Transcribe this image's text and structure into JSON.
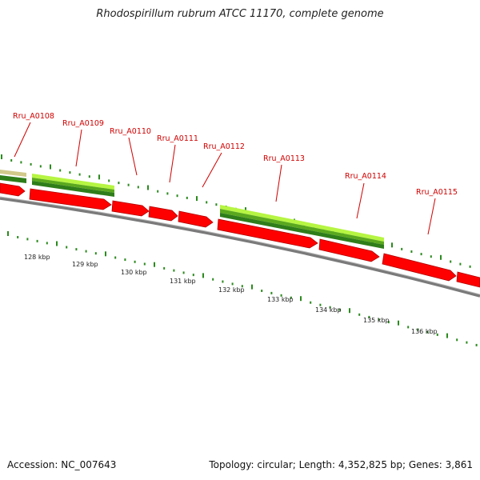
{
  "title": "Rhodospirillum rubrum ATCC 11170, complete genome",
  "footer": {
    "accession": "Accession: NC_007643",
    "summary": "Topology: circular; Length: 4,352,825 bp; Genes: 3,861"
  },
  "colors": {
    "cds": "#ff0000",
    "cds_dark": "#b00000",
    "gc_light": "#b6f542",
    "gc_mid": "#5aa81e",
    "gc_dark": "#2e7d1a",
    "tick": "#2b8a1e",
    "backbone": "#7a7a7a",
    "label": "#d00000"
  },
  "genes": [
    {
      "name": "Rru_A0108"
    },
    {
      "name": "Rru_A0109"
    },
    {
      "name": "Rru_A0110"
    },
    {
      "name": "Rru_A0111"
    },
    {
      "name": "Rru_A0112"
    },
    {
      "name": "Rru_A0113"
    },
    {
      "name": "Rru_A0114"
    },
    {
      "name": "Rru_A0115"
    }
  ],
  "ruler": [
    "128 kbp",
    "129 kbp",
    "130 kbp",
    "131 kbp",
    "132 kbp",
    "133 kbp",
    "134 kbp",
    "135 kbp",
    "136 kbp"
  ]
}
